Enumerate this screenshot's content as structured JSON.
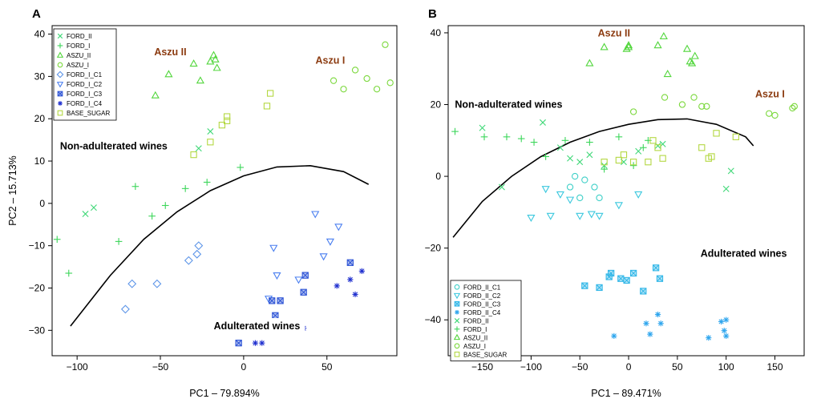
{
  "palette": {
    "ford_ii": "#40d878",
    "ford_i": "#3cd65a",
    "aszu_ii": "#52d63c",
    "aszu_i": "#7bd83c",
    "base_sugar": "#b4d843",
    "ford_i_c1": "#5d95e8",
    "ford_i_c2": "#4a7ff0",
    "ford_i_c3": "#2f55d6",
    "ford_i_c4": "#2030cf",
    "ford_ii_c1": "#3fd0c8",
    "ford_ii_c2": "#3bc8de",
    "ford_ii_c3": "#35b8e8",
    "ford_ii_c4": "#2fa6ee",
    "aszu_label": "#8b3a0f",
    "curve": "#000000"
  },
  "chart_data": [
    {
      "type": "scatter",
      "panel_label": "A",
      "xlabel": "PC1 – 79.894%",
      "ylabel": "PC2 – 15.713%",
      "xlim": [
        -115,
        92
      ],
      "ylim": [
        -36,
        42
      ],
      "xticks": [
        -100,
        -50,
        0,
        50
      ],
      "yticks": [
        -30,
        -20,
        -10,
        0,
        10,
        20,
        30,
        40
      ],
      "legend_position": "top-left",
      "legend": [
        {
          "label": "FORD_II",
          "marker": "x",
          "color_key": "ford_ii"
        },
        {
          "label": "FORD_I",
          "marker": "plus",
          "color_key": "ford_i"
        },
        {
          "label": "ASZU_II",
          "marker": "triangle",
          "color_key": "aszu_ii"
        },
        {
          "label": "ASZU_I",
          "marker": "circle",
          "color_key": "aszu_i"
        },
        {
          "label": "FORD_I_C1",
          "marker": "diamond",
          "color_key": "ford_i_c1"
        },
        {
          "label": "FORD_I_C2",
          "marker": "triangle-down",
          "color_key": "ford_i_c2"
        },
        {
          "label": "FORD_I_C3",
          "marker": "square-x",
          "color_key": "ford_i_c3"
        },
        {
          "label": "FORD_I_C4",
          "marker": "asterisk",
          "color_key": "ford_i_c4"
        },
        {
          "label": "BASE_SUGAR",
          "marker": "square",
          "color_key": "base_sugar"
        }
      ],
      "annotations": [
        {
          "text": "Aszu II",
          "x": -44,
          "y": 35,
          "style": "aszu"
        },
        {
          "text": "Aszu I",
          "x": 52,
          "y": 33,
          "style": "aszu"
        },
        {
          "text": "Non-adulterated wines",
          "x": -78,
          "y": 13.5,
          "style": "box"
        },
        {
          "text": "Adulterated wines",
          "x": 8,
          "y": -29,
          "style": "box"
        }
      ],
      "curve": [
        [
          -104,
          -29
        ],
        [
          -80,
          -17
        ],
        [
          -60,
          -8.5
        ],
        [
          -40,
          -2
        ],
        [
          -20,
          3
        ],
        [
          0,
          6.5
        ],
        [
          20,
          8.6
        ],
        [
          40,
          8.9
        ],
        [
          60,
          7.5
        ],
        [
          75,
          4.5
        ]
      ],
      "series": [
        {
          "name": "FORD_II",
          "color_key": "ford_ii",
          "marker": "x",
          "points": [
            [
              -95,
              -2.5
            ],
            [
              -90,
              -1
            ],
            [
              -27,
              13
            ],
            [
              -20,
              17
            ]
          ]
        },
        {
          "name": "FORD_I",
          "color_key": "ford_i",
          "marker": "plus",
          "points": [
            [
              -112,
              -8.5
            ],
            [
              -105,
              -16.5
            ],
            [
              -75,
              -9
            ],
            [
              -55,
              -3
            ],
            [
              -65,
              4
            ],
            [
              -47,
              -0.5
            ],
            [
              -35,
              3.5
            ],
            [
              -22,
              5
            ],
            [
              -2,
              8.5
            ]
          ]
        },
        {
          "name": "ASZU_II",
          "color_key": "aszu_ii",
          "marker": "triangle",
          "points": [
            [
              -53,
              25.5
            ],
            [
              -45,
              30.5
            ],
            [
              -30,
              33
            ],
            [
              -26,
              29
            ],
            [
              -20,
              33.5
            ],
            [
              -18,
              35
            ],
            [
              -17,
              34
            ],
            [
              -16,
              32
            ]
          ]
        },
        {
          "name": "ASZU_I",
          "color_key": "aszu_i",
          "marker": "circle",
          "points": [
            [
              54,
              29
            ],
            [
              60,
              27
            ],
            [
              67,
              31.5
            ],
            [
              74,
              29.5
            ],
            [
              80,
              27
            ],
            [
              85,
              37.5
            ],
            [
              88,
              28.5
            ]
          ]
        },
        {
          "name": "BASE_SUGAR",
          "color_key": "base_sugar",
          "marker": "square",
          "points": [
            [
              -30,
              11.5
            ],
            [
              -20,
              14.5
            ],
            [
              -13,
              18.5
            ],
            [
              -10,
              19.5
            ],
            [
              -10,
              20.5
            ],
            [
              14,
              23
            ],
            [
              16,
              26
            ]
          ]
        },
        {
          "name": "FORD_I_C1",
          "color_key": "ford_i_c1",
          "marker": "diamond",
          "points": [
            [
              -71,
              -25
            ],
            [
              -67,
              -19
            ],
            [
              -52,
              -19
            ],
            [
              -33,
              -13.5
            ],
            [
              -27,
              -10
            ],
            [
              -28,
              -12
            ]
          ]
        },
        {
          "name": "FORD_I_C2",
          "color_key": "ford_i_c2",
          "marker": "triangle-down",
          "points": [
            [
              15,
              -22.5
            ],
            [
              18,
              -10.5
            ],
            [
              20,
              -17
            ],
            [
              33,
              -18
            ],
            [
              43,
              -2.5
            ],
            [
              48,
              -12.5
            ],
            [
              52,
              -9
            ],
            [
              57,
              -5.5
            ]
          ]
        },
        {
          "name": "FORD_I_C3",
          "color_key": "ford_i_c3",
          "marker": "square-x",
          "points": [
            [
              -3,
              -33
            ],
            [
              17,
              -23
            ],
            [
              19,
              -26.5
            ],
            [
              20,
              -29
            ],
            [
              22,
              -23
            ],
            [
              36,
              -21
            ],
            [
              37,
              -17
            ],
            [
              64,
              -14
            ]
          ]
        },
        {
          "name": "FORD_I_C4",
          "color_key": "ford_i_c4",
          "marker": "asterisk",
          "points": [
            [
              7,
              -33
            ],
            [
              11,
              -33
            ],
            [
              24,
              -29.5
            ],
            [
              36,
              -29.5
            ],
            [
              56,
              -19.5
            ],
            [
              64,
              -18
            ],
            [
              67,
              -21.5
            ],
            [
              71,
              -16
            ]
          ]
        }
      ]
    },
    {
      "type": "scatter",
      "panel_label": "B",
      "xlabel": "PC1 – 89.471%",
      "ylabel": "",
      "xlim": [
        -185,
        180
      ],
      "ylim": [
        -50,
        42
      ],
      "xticks": [
        -150,
        -100,
        -50,
        0,
        50,
        100,
        150
      ],
      "yticks": [
        -40,
        -20,
        0,
        20,
        40
      ],
      "legend_position": "bottom-left",
      "legend": [
        {
          "label": "FORD_II_C1",
          "marker": "circle",
          "color_key": "ford_ii_c1"
        },
        {
          "label": "FORD_II_C2",
          "marker": "triangle-down",
          "color_key": "ford_ii_c2"
        },
        {
          "label": "FORD_II_C3",
          "marker": "square-x",
          "color_key": "ford_ii_c3"
        },
        {
          "label": "FORD_II_C4",
          "marker": "asterisk",
          "color_key": "ford_ii_c4"
        },
        {
          "label": "FORD_II",
          "marker": "x",
          "color_key": "ford_ii"
        },
        {
          "label": "FORD_I",
          "marker": "plus",
          "color_key": "ford_i"
        },
        {
          "label": "ASZU_II",
          "marker": "triangle",
          "color_key": "aszu_ii"
        },
        {
          "label": "ASZU_I",
          "marker": "circle",
          "color_key": "aszu_i"
        },
        {
          "label": "BASE_SUGAR",
          "marker": "square",
          "color_key": "base_sugar"
        }
      ],
      "annotations": [
        {
          "text": "Aszu II",
          "x": -15,
          "y": 39,
          "style": "aszu"
        },
        {
          "text": "Aszu I",
          "x": 145,
          "y": 22,
          "style": "aszu"
        },
        {
          "text": "Non-adulterated wines",
          "x": -123,
          "y": 20,
          "style": "box"
        },
        {
          "text": "Adulterated wines",
          "x": 118,
          "y": -21.5,
          "style": "box"
        }
      ],
      "curve": [
        [
          -180,
          -17
        ],
        [
          -150,
          -7
        ],
        [
          -120,
          0
        ],
        [
          -90,
          5.5
        ],
        [
          -60,
          9.5
        ],
        [
          -30,
          12.5
        ],
        [
          0,
          14.5
        ],
        [
          30,
          15.8
        ],
        [
          60,
          16
        ],
        [
          90,
          14.5
        ],
        [
          120,
          11
        ],
        [
          128,
          8.5
        ]
      ],
      "series": [
        {
          "name": "FORD_II",
          "color_key": "ford_ii",
          "marker": "x",
          "points": [
            [
              -150,
              13.5
            ],
            [
              -130,
              -3
            ],
            [
              -88,
              15
            ],
            [
              -70,
              8
            ],
            [
              -60,
              5
            ],
            [
              -50,
              4
            ],
            [
              -40,
              6
            ],
            [
              -25,
              3
            ],
            [
              -5,
              4
            ],
            [
              10,
              7
            ],
            [
              30,
              8.5
            ],
            [
              35,
              9
            ],
            [
              100,
              -3.5
            ],
            [
              105,
              1.5
            ]
          ]
        },
        {
          "name": "FORD_I",
          "color_key": "ford_i",
          "marker": "plus",
          "points": [
            [
              -178,
              12.5
            ],
            [
              -148,
              11
            ],
            [
              -125,
              11
            ],
            [
              -110,
              10.5
            ],
            [
              -97,
              9.5
            ],
            [
              -85,
              5.5
            ],
            [
              -65,
              10
            ],
            [
              -40,
              9.5
            ],
            [
              -25,
              2
            ],
            [
              -10,
              11
            ],
            [
              5,
              3
            ],
            [
              15,
              8
            ],
            [
              20,
              10
            ]
          ]
        },
        {
          "name": "ASZU_II",
          "color_key": "aszu_ii",
          "marker": "triangle",
          "points": [
            [
              -40,
              31.5
            ],
            [
              -25,
              36
            ],
            [
              -2,
              35.5
            ],
            [
              0,
              36
            ],
            [
              0,
              36.5
            ],
            [
              30,
              36.5
            ],
            [
              36,
              39
            ],
            [
              40,
              28.5
            ],
            [
              60,
              35.5
            ],
            [
              65,
              31.5
            ],
            [
              68,
              33.5
            ],
            [
              63,
              32
            ]
          ]
        },
        {
          "name": "ASZU_I",
          "color_key": "aszu_i",
          "marker": "circle",
          "points": [
            [
              5,
              18
            ],
            [
              37,
              22
            ],
            [
              55,
              20
            ],
            [
              67,
              22
            ],
            [
              75,
              19.5
            ],
            [
              80,
              19.5
            ],
            [
              144,
              17.5
            ],
            [
              150,
              17
            ],
            [
              168,
              19
            ],
            [
              170,
              19.5
            ]
          ]
        },
        {
          "name": "BASE_SUGAR",
          "color_key": "base_sugar",
          "marker": "square",
          "points": [
            [
              -25,
              4
            ],
            [
              -10,
              4.5
            ],
            [
              -5,
              6
            ],
            [
              5,
              4
            ],
            [
              20,
              4
            ],
            [
              25,
              10
            ],
            [
              30,
              8
            ],
            [
              35,
              5
            ],
            [
              75,
              8
            ],
            [
              82,
              5
            ],
            [
              85,
              5.5
            ],
            [
              90,
              12
            ],
            [
              110,
              11
            ]
          ]
        },
        {
          "name": "FORD_II_C1",
          "color_key": "ford_ii_c1",
          "marker": "circle",
          "points": [
            [
              -60,
              -3
            ],
            [
              -50,
              -6
            ],
            [
              -55,
              0
            ],
            [
              -45,
              -1
            ],
            [
              -35,
              -3
            ],
            [
              -30,
              -6
            ]
          ]
        },
        {
          "name": "FORD_II_C2",
          "color_key": "ford_ii_c2",
          "marker": "triangle-down",
          "points": [
            [
              -100,
              -11.5
            ],
            [
              -80,
              -11
            ],
            [
              -70,
              -5
            ],
            [
              -50,
              -11
            ],
            [
              -38,
              -10.5
            ],
            [
              -30,
              -11
            ],
            [
              -10,
              -8
            ],
            [
              10,
              -5
            ],
            [
              -85,
              -3.5
            ],
            [
              -60,
              -6.5
            ]
          ]
        },
        {
          "name": "FORD_II_C3",
          "color_key": "ford_II_c3",
          "marker": "square-x",
          "points": [
            [
              -45,
              -30.5
            ],
            [
              -30,
              -31
            ],
            [
              -20,
              -28
            ],
            [
              -18,
              -27
            ],
            [
              -8,
              -28.5
            ],
            [
              -2,
              -29
            ],
            [
              5,
              -27
            ],
            [
              15,
              -32
            ],
            [
              28,
              -25.5
            ],
            [
              32,
              -28.5
            ]
          ]
        },
        {
          "name": "FORD_II_C4",
          "color_key": "ford_ii_c4",
          "marker": "asterisk",
          "points": [
            [
              -15,
              -44.5
            ],
            [
              18,
              -41
            ],
            [
              22,
              -44
            ],
            [
              30,
              -38.5
            ],
            [
              33,
              -41
            ],
            [
              82,
              -45
            ],
            [
              95,
              -40.5
            ],
            [
              98,
              -43
            ],
            [
              100,
              -40
            ],
            [
              100,
              -44.5
            ]
          ]
        }
      ]
    }
  ]
}
